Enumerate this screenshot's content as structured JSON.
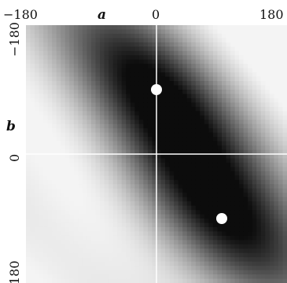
{
  "chart_data": {
    "type": "heatmap",
    "title": "",
    "xlabel": "a",
    "ylabel": "b",
    "xlim": [
      -180,
      180
    ],
    "ylim": [
      -180,
      180
    ],
    "y_direction": "down",
    "x_ticks": [
      "-180",
      "0",
      "180"
    ],
    "y_ticks": [
      "-180",
      "0",
      "180"
    ],
    "x_tick_values": [
      -180,
      0,
      180
    ],
    "y_tick_values": [
      -180,
      0,
      180
    ],
    "colormap": "grayscale",
    "low_color": "#0c0c0c",
    "high_color": "#f4f4f4",
    "gridlines_at": {
      "x": 0,
      "y": 0
    },
    "gridline_color": "#ffffff",
    "marker_color": "#ffffff",
    "markers": [
      {
        "x": 0,
        "y": -90
      },
      {
        "x": 90,
        "y": 90
      }
    ],
    "grid": false,
    "legend": "none"
  }
}
